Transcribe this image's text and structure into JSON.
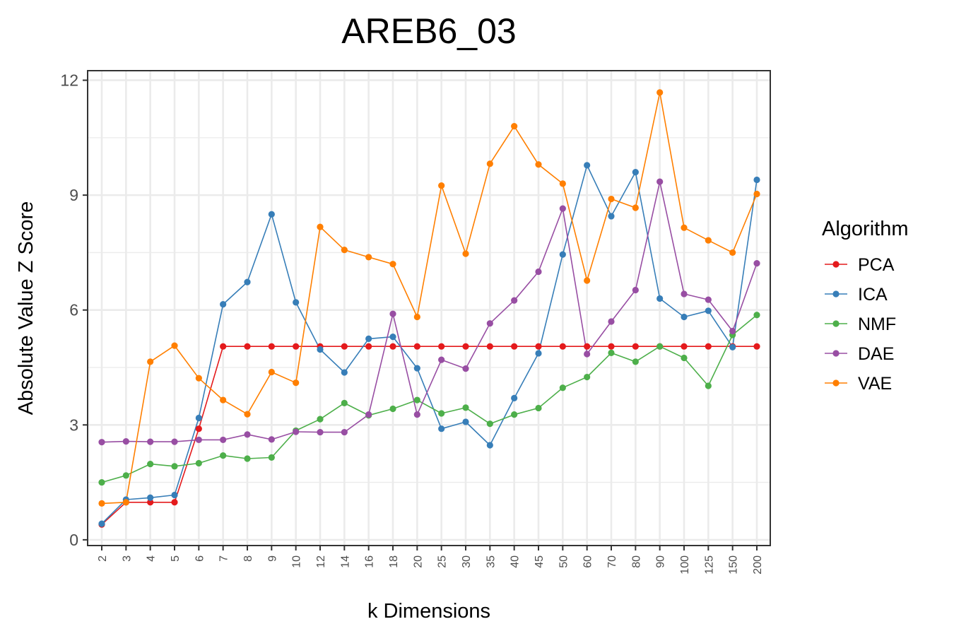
{
  "chart_data": {
    "type": "line",
    "title": "AREB6_03",
    "xlabel": "k Dimensions",
    "ylabel": "Absolute Value Z Score",
    "categories": [
      "2",
      "3",
      "4",
      "5",
      "6",
      "7",
      "8",
      "9",
      "10",
      "12",
      "14",
      "16",
      "18",
      "20",
      "25",
      "30",
      "35",
      "40",
      "45",
      "50",
      "60",
      "70",
      "80",
      "90",
      "100",
      "125",
      "150",
      "200"
    ],
    "y_ticks": [
      0,
      3,
      6,
      9,
      12
    ],
    "ylim": [
      -0.15,
      12.25
    ],
    "grid": true,
    "legend": {
      "title": "Algorithm",
      "position": "right"
    },
    "series": [
      {
        "name": "PCA",
        "color": "#e41a1c",
        "values": [
          0.4,
          0.98,
          0.98,
          0.98,
          2.9,
          5.05,
          5.05,
          5.05,
          5.05,
          5.05,
          5.05,
          5.05,
          5.05,
          5.05,
          5.05,
          5.05,
          5.05,
          5.05,
          5.05,
          5.05,
          5.05,
          5.05,
          5.05,
          5.05,
          5.05,
          5.05,
          5.05,
          5.05
        ]
      },
      {
        "name": "ICA",
        "color": "#377eb8",
        "values": [
          0.42,
          1.05,
          1.1,
          1.17,
          3.18,
          6.15,
          6.73,
          8.5,
          6.2,
          4.97,
          4.37,
          5.25,
          5.3,
          4.48,
          2.9,
          3.08,
          2.47,
          3.7,
          4.87,
          7.45,
          9.78,
          8.45,
          9.6,
          6.3,
          5.82,
          5.98,
          5.03,
          9.4
        ]
      },
      {
        "name": "NMF",
        "color": "#4daf4a",
        "values": [
          1.5,
          1.68,
          1.98,
          1.92,
          2.0,
          2.2,
          2.12,
          2.15,
          2.85,
          3.15,
          3.57,
          3.25,
          3.42,
          3.65,
          3.3,
          3.45,
          3.03,
          3.27,
          3.44,
          3.97,
          4.25,
          4.88,
          4.65,
          5.05,
          4.75,
          4.02,
          5.35,
          5.87
        ]
      },
      {
        "name": "DAE",
        "color": "#984ea3",
        "values": [
          2.55,
          2.57,
          2.56,
          2.56,
          2.61,
          2.61,
          2.75,
          2.62,
          2.82,
          2.81,
          2.81,
          3.27,
          5.9,
          3.27,
          4.7,
          4.47,
          5.65,
          6.25,
          7.0,
          8.65,
          4.85,
          5.7,
          6.52,
          9.35,
          6.42,
          6.27,
          5.45,
          7.22
        ]
      },
      {
        "name": "VAE",
        "color": "#ff7f00",
        "values": [
          0.95,
          0.98,
          4.65,
          5.07,
          4.22,
          3.65,
          3.28,
          4.38,
          4.1,
          8.17,
          7.57,
          7.38,
          7.2,
          5.82,
          9.25,
          7.47,
          9.82,
          10.8,
          9.8,
          9.3,
          6.77,
          8.9,
          8.67,
          11.68,
          8.15,
          7.82,
          7.5,
          9.03
        ]
      }
    ]
  }
}
